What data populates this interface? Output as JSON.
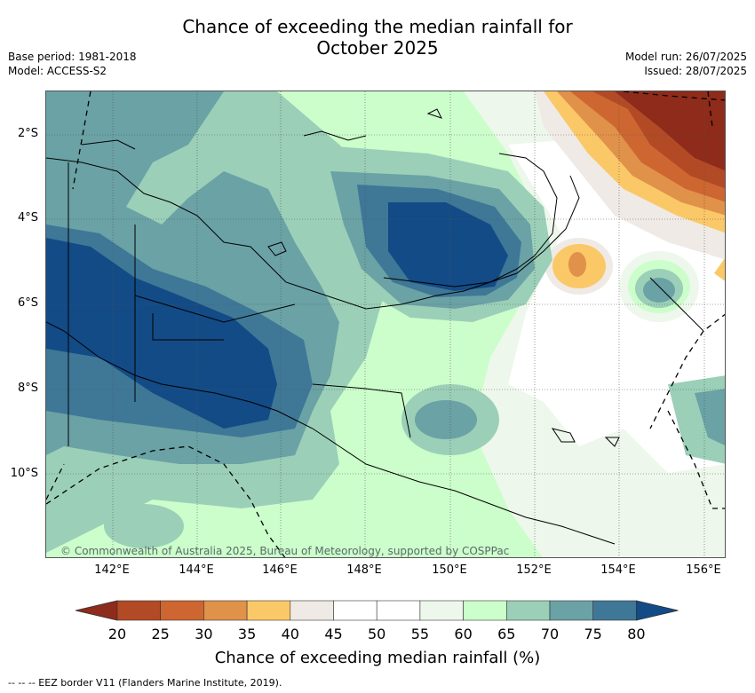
{
  "title_line1": "Chance of exceeding the median rainfall for",
  "title_line2": "October 2025",
  "meta": {
    "base_period": "Base period: 1981-2018",
    "model": "Model: ACCESS-S2",
    "model_run": "Model run: 26/07/2025",
    "issued": "Issued: 28/07/2025"
  },
  "map": {
    "lat_labels": [
      "2°S",
      "4°S",
      "6°S",
      "8°S",
      "10°S"
    ],
    "lon_labels": [
      "142°E",
      "144°E",
      "146°E",
      "148°E",
      "150°E",
      "152°E",
      "154°E",
      "156°E"
    ],
    "copyright": "© Commonwealth of Australia 2025, Bureau of Meteorology, supported by COSPPac"
  },
  "colorbar": {
    "ticks": [
      "20",
      "25",
      "30",
      "35",
      "40",
      "45",
      "50",
      "55",
      "60",
      "65",
      "70",
      "75",
      "80"
    ],
    "colors": [
      "#8e2b1a",
      "#b24a25",
      "#cd6630",
      "#e0914a",
      "#fbc868",
      "#efeae5",
      "#ffffff",
      "#ffffff",
      "#eef7ec",
      "#ccfecb",
      "#9bcfb8",
      "#6aa2a5",
      "#3f7797",
      "#134b86"
    ],
    "label": "Chance of exceeding median rainfall (%)"
  },
  "footer": "-- -- -- EEZ border V11 (Flanders Marine Institute, 2019)."
}
